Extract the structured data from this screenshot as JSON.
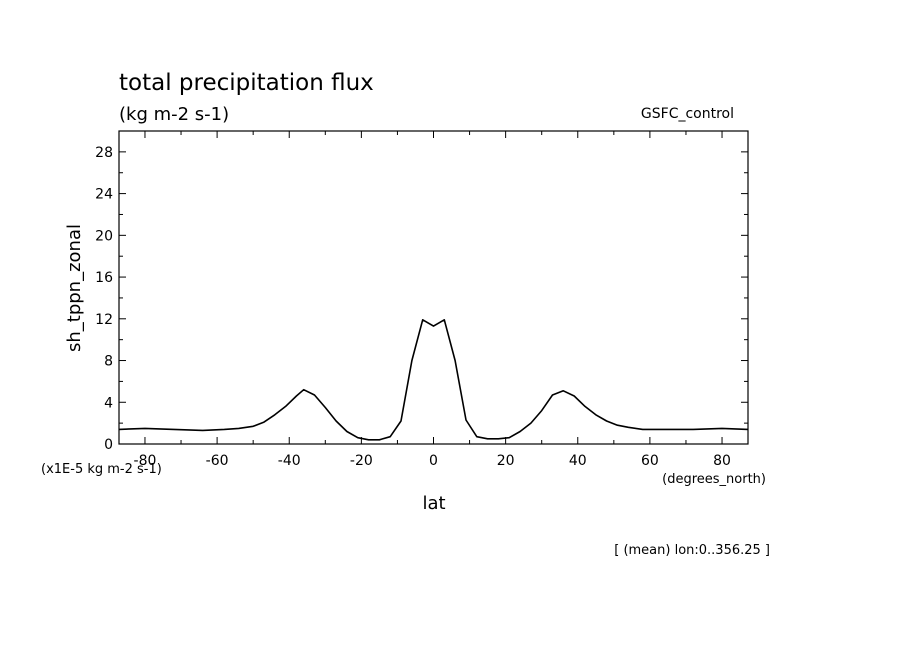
{
  "chart_data": {
    "type": "line",
    "title": "total precipitation flux",
    "subtitle": "(kg m-2 s-1)",
    "dataset_label": "GSFC_control",
    "ylabel": "sh_tppn_zonal",
    "yunits": "(x1E-5 kg m-2 s-1)",
    "xlabel": "lat",
    "xunits": "(degrees_north)",
    "footnote": "[ (mean) lon:0..356.25 ]",
    "xlim": [
      -87.2,
      87.2
    ],
    "ylim": [
      0,
      30
    ],
    "xticks": [
      -80,
      -60,
      -40,
      -20,
      0,
      20,
      40,
      60,
      80
    ],
    "xtick_labels": [
      "-80",
      "-60",
      "-40",
      "-20",
      "0",
      "20",
      "40",
      "60",
      "80"
    ],
    "yticks": [
      0,
      4,
      8,
      12,
      16,
      20,
      24,
      28
    ],
    "ytick_labels": [
      "0",
      "4",
      "8",
      "12",
      "16",
      "20",
      "24",
      "28"
    ],
    "grid": false,
    "line_color": "#000000",
    "series": [
      {
        "x": [
          -87.2,
          -80,
          -72,
          -64,
          -58,
          -54,
          -50,
          -47,
          -44,
          -41,
          -38,
          -36,
          -33,
          -30,
          -27,
          -24,
          -21,
          -18,
          -15,
          -12,
          -9,
          -6,
          -3,
          0,
          3,
          6,
          9,
          12,
          15,
          18,
          21,
          24,
          27,
          30,
          33,
          36,
          39,
          42,
          45,
          48,
          51,
          54,
          58,
          64,
          72,
          80,
          87.2
        ],
        "y": [
          1.4,
          1.5,
          1.4,
          1.3,
          1.4,
          1.5,
          1.7,
          2.1,
          2.8,
          3.6,
          4.6,
          5.2,
          4.7,
          3.5,
          2.2,
          1.2,
          0.6,
          0.4,
          0.4,
          0.7,
          2.2,
          8.0,
          11.9,
          11.3,
          11.9,
          8.0,
          2.3,
          0.7,
          0.5,
          0.5,
          0.6,
          1.2,
          2.0,
          3.2,
          4.7,
          5.1,
          4.6,
          3.6,
          2.8,
          2.2,
          1.8,
          1.6,
          1.4,
          1.4,
          1.4,
          1.5,
          1.4
        ]
      }
    ]
  }
}
